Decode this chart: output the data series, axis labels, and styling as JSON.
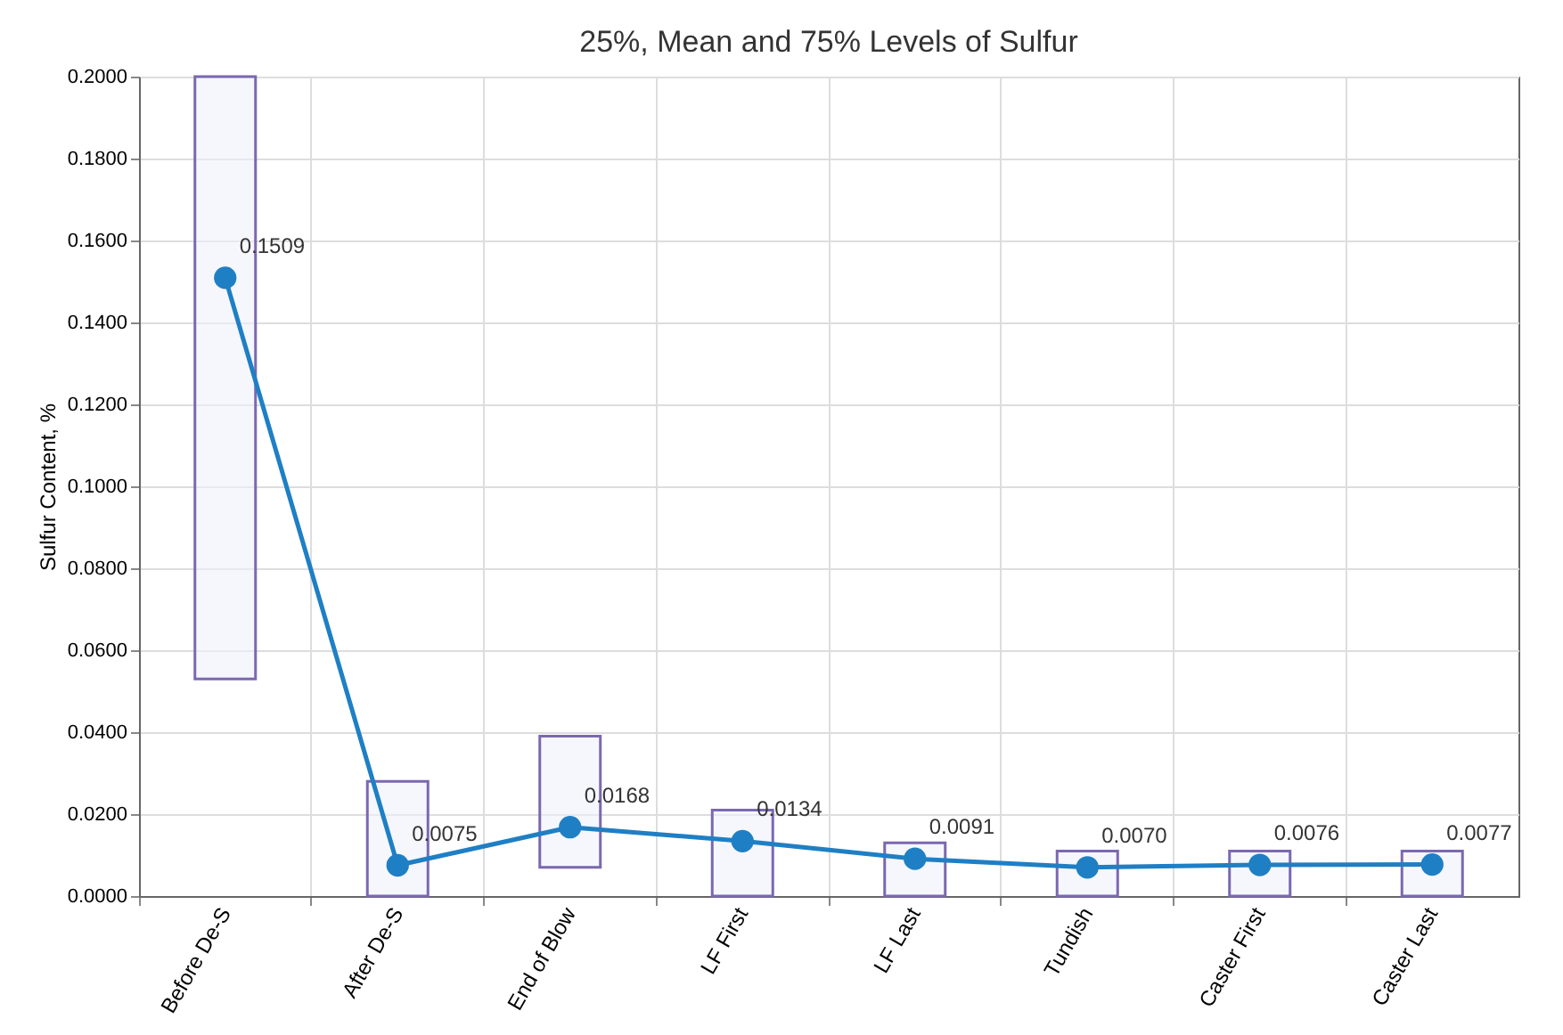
{
  "chart_data": {
    "type": "bar",
    "title": "25%, Mean and 75% Levels of Sulfur",
    "ylabel": "Sulfur Content, %",
    "categories": [
      "Before De-S",
      "After De-S",
      "End of Blow",
      "LF First",
      "LF Last",
      "Tundish",
      "Caster First",
      "Caster Last"
    ],
    "series": [
      {
        "color": "#7b68b0",
        "base": [
          0.053,
          0,
          0.007,
          0,
          0,
          0,
          0,
          0
        ],
        "values": [
          0.147,
          0.028,
          0.032,
          0.021,
          0.013,
          0.011,
          0.011,
          0.011
        ]
      },
      {
        "type": "line",
        "color": "#1f7fc4",
        "marker": "circle",
        "values": [
          0.1509,
          0.0075,
          0.0168,
          0.0134,
          0.0091,
          0.007,
          0.0076,
          0.0077
        ],
        "value_labels": [
          "0.1509",
          "0.0075",
          "0.0168",
          "0.0134",
          "0.0091",
          "0.0070",
          "0.0076",
          "0.0077"
        ]
      }
    ],
    "ylim": [
      0,
      0.2
    ],
    "yticks": [
      {
        "value": 0,
        "label": "0.0000"
      },
      {
        "value": 0.02,
        "label": "0.0200"
      },
      {
        "value": 0.04,
        "label": "0.0400"
      },
      {
        "value": 0.06,
        "label": "0.0600"
      },
      {
        "value": 0.08,
        "label": "0.0800"
      },
      {
        "value": 0.1,
        "label": "0.1000"
      },
      {
        "value": 0.12,
        "label": "0.1200"
      },
      {
        "value": 0.14,
        "label": "0.1400"
      },
      {
        "value": 0.16,
        "label": "0.1600"
      },
      {
        "value": 0.18,
        "label": "0.1800"
      },
      {
        "value": 0.2,
        "label": "0.2000"
      }
    ],
    "grid": true
  }
}
